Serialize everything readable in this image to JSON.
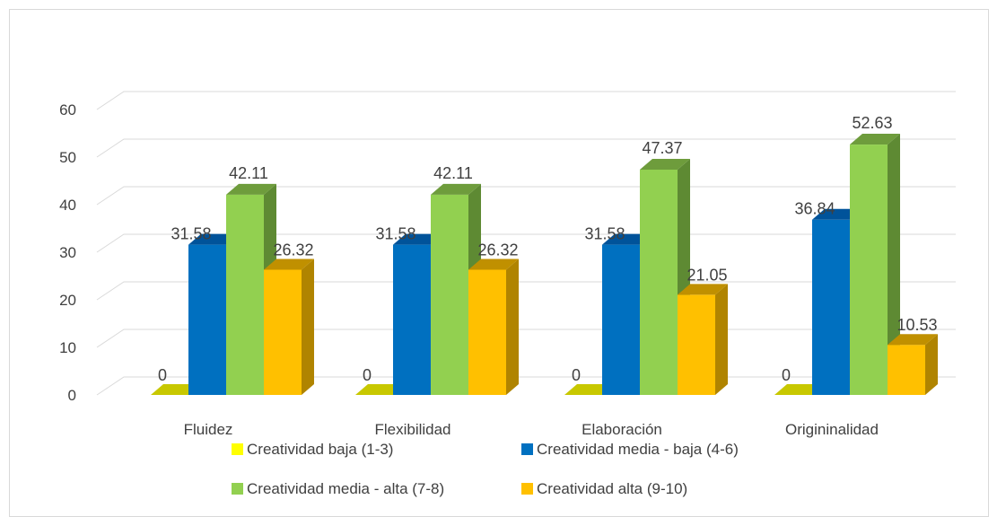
{
  "chart_data": {
    "type": "bar",
    "categories": [
      "Fluidez",
      "Flexibilidad",
      "Elaboración",
      "Origininalidad"
    ],
    "series": [
      {
        "name": "Creatividad baja (1-3)",
        "values": [
          0,
          0,
          0,
          0
        ],
        "color": "#c8c800",
        "top_color": "#c8c800",
        "side_color": "#a0a000",
        "swatch": "#ffff00"
      },
      {
        "name": "Creatividad media - baja  (4-6)",
        "values": [
          31.58,
          31.58,
          31.58,
          36.84
        ],
        "color": "#0070c0",
        "top_color": "#00539a",
        "side_color": "#005596",
        "swatch": "#0070c0"
      },
      {
        "name": "Creatividad media - alta (7-8)",
        "values": [
          42.11,
          42.11,
          47.37,
          52.63
        ],
        "color": "#92d050",
        "top_color": "#6e9c3c",
        "side_color": "#5e8a33",
        "swatch": "#92d050"
      },
      {
        "name": "Creatividad alta (9-10)",
        "values": [
          26.32,
          26.32,
          21.05,
          10.53
        ],
        "color": "#ffc000",
        "top_color": "#c09000",
        "side_color": "#b08400",
        "swatch": "#ffc000"
      }
    ],
    "value_labels": [
      [
        "0",
        "31.58",
        "42.11",
        "26.32"
      ],
      [
        "0",
        "31.58",
        "42.11",
        "26.32"
      ],
      [
        "0",
        "31.58",
        "47.37",
        "21.05"
      ],
      [
        "0",
        "36.84",
        "52.63",
        "10.53"
      ]
    ],
    "y_ticks": [
      "0",
      "10",
      "20",
      "30",
      "40",
      "50",
      "60"
    ],
    "ylim": [
      0,
      60
    ],
    "title": "",
    "xlabel": "",
    "ylabel": "",
    "grid": true,
    "legend_position": "bottom",
    "view": "3d-clustered-column"
  }
}
